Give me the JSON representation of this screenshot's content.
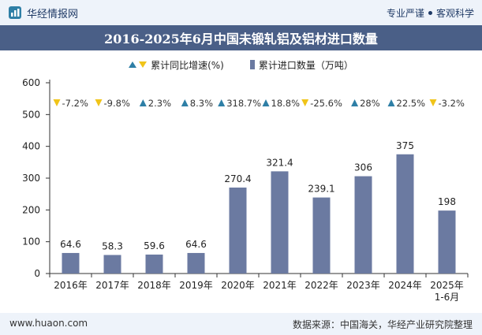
{
  "header": {
    "brand": "华经情报网",
    "slogan_left": "专业严谨",
    "slogan_right": "客观科学"
  },
  "legend": {
    "growth": "累计同比增速(%)",
    "volume": "累计进口数量（万吨）"
  },
  "footer": {
    "url": "www.huaon.com",
    "source": "数据来源：中国海关，华经产业研究院整理"
  },
  "colors": {
    "bar": "#6b7aa1",
    "up": "#2e7fa6",
    "down": "#f0c419",
    "title_bg": "#4a5f87",
    "band_bg": "#eef3fa"
  },
  "chart_data": {
    "type": "bar",
    "title": "2016-2025年6月中国未锻轧铝及铝材进口数量",
    "categories": [
      "2016年",
      "2017年",
      "2018年",
      "2019年",
      "2020年",
      "2021年",
      "2022年",
      "2023年",
      "2024年",
      "2025年\n1-6月"
    ],
    "series": [
      {
        "name": "累计进口数量（万吨）",
        "values": [
          64.6,
          58.3,
          59.6,
          64.6,
          270.4,
          321.4,
          239.1,
          306,
          375,
          198
        ],
        "labels": [
          "64.6",
          "58.3",
          "59.6",
          "64.6",
          "270.4",
          "321.4",
          "239.1",
          "306",
          "375",
          "198"
        ]
      },
      {
        "name": "累计同比增速(%)",
        "values": [
          -7.2,
          -9.8,
          2.3,
          8.3,
          318.7,
          18.8,
          -25.6,
          28,
          22.5,
          -3.2
        ],
        "labels": [
          "-7.2%",
          "-9.8%",
          "2.3%",
          "8.3%",
          "318.7%",
          "18.8%",
          "-25.6%",
          "28%",
          "22.5%",
          "-3.2%"
        ]
      }
    ],
    "ylim": [
      0,
      600
    ],
    "yticks": [
      "0",
      "100",
      "200",
      "300",
      "400",
      "500",
      "600"
    ],
    "grid": false,
    "legend_position": "top"
  }
}
